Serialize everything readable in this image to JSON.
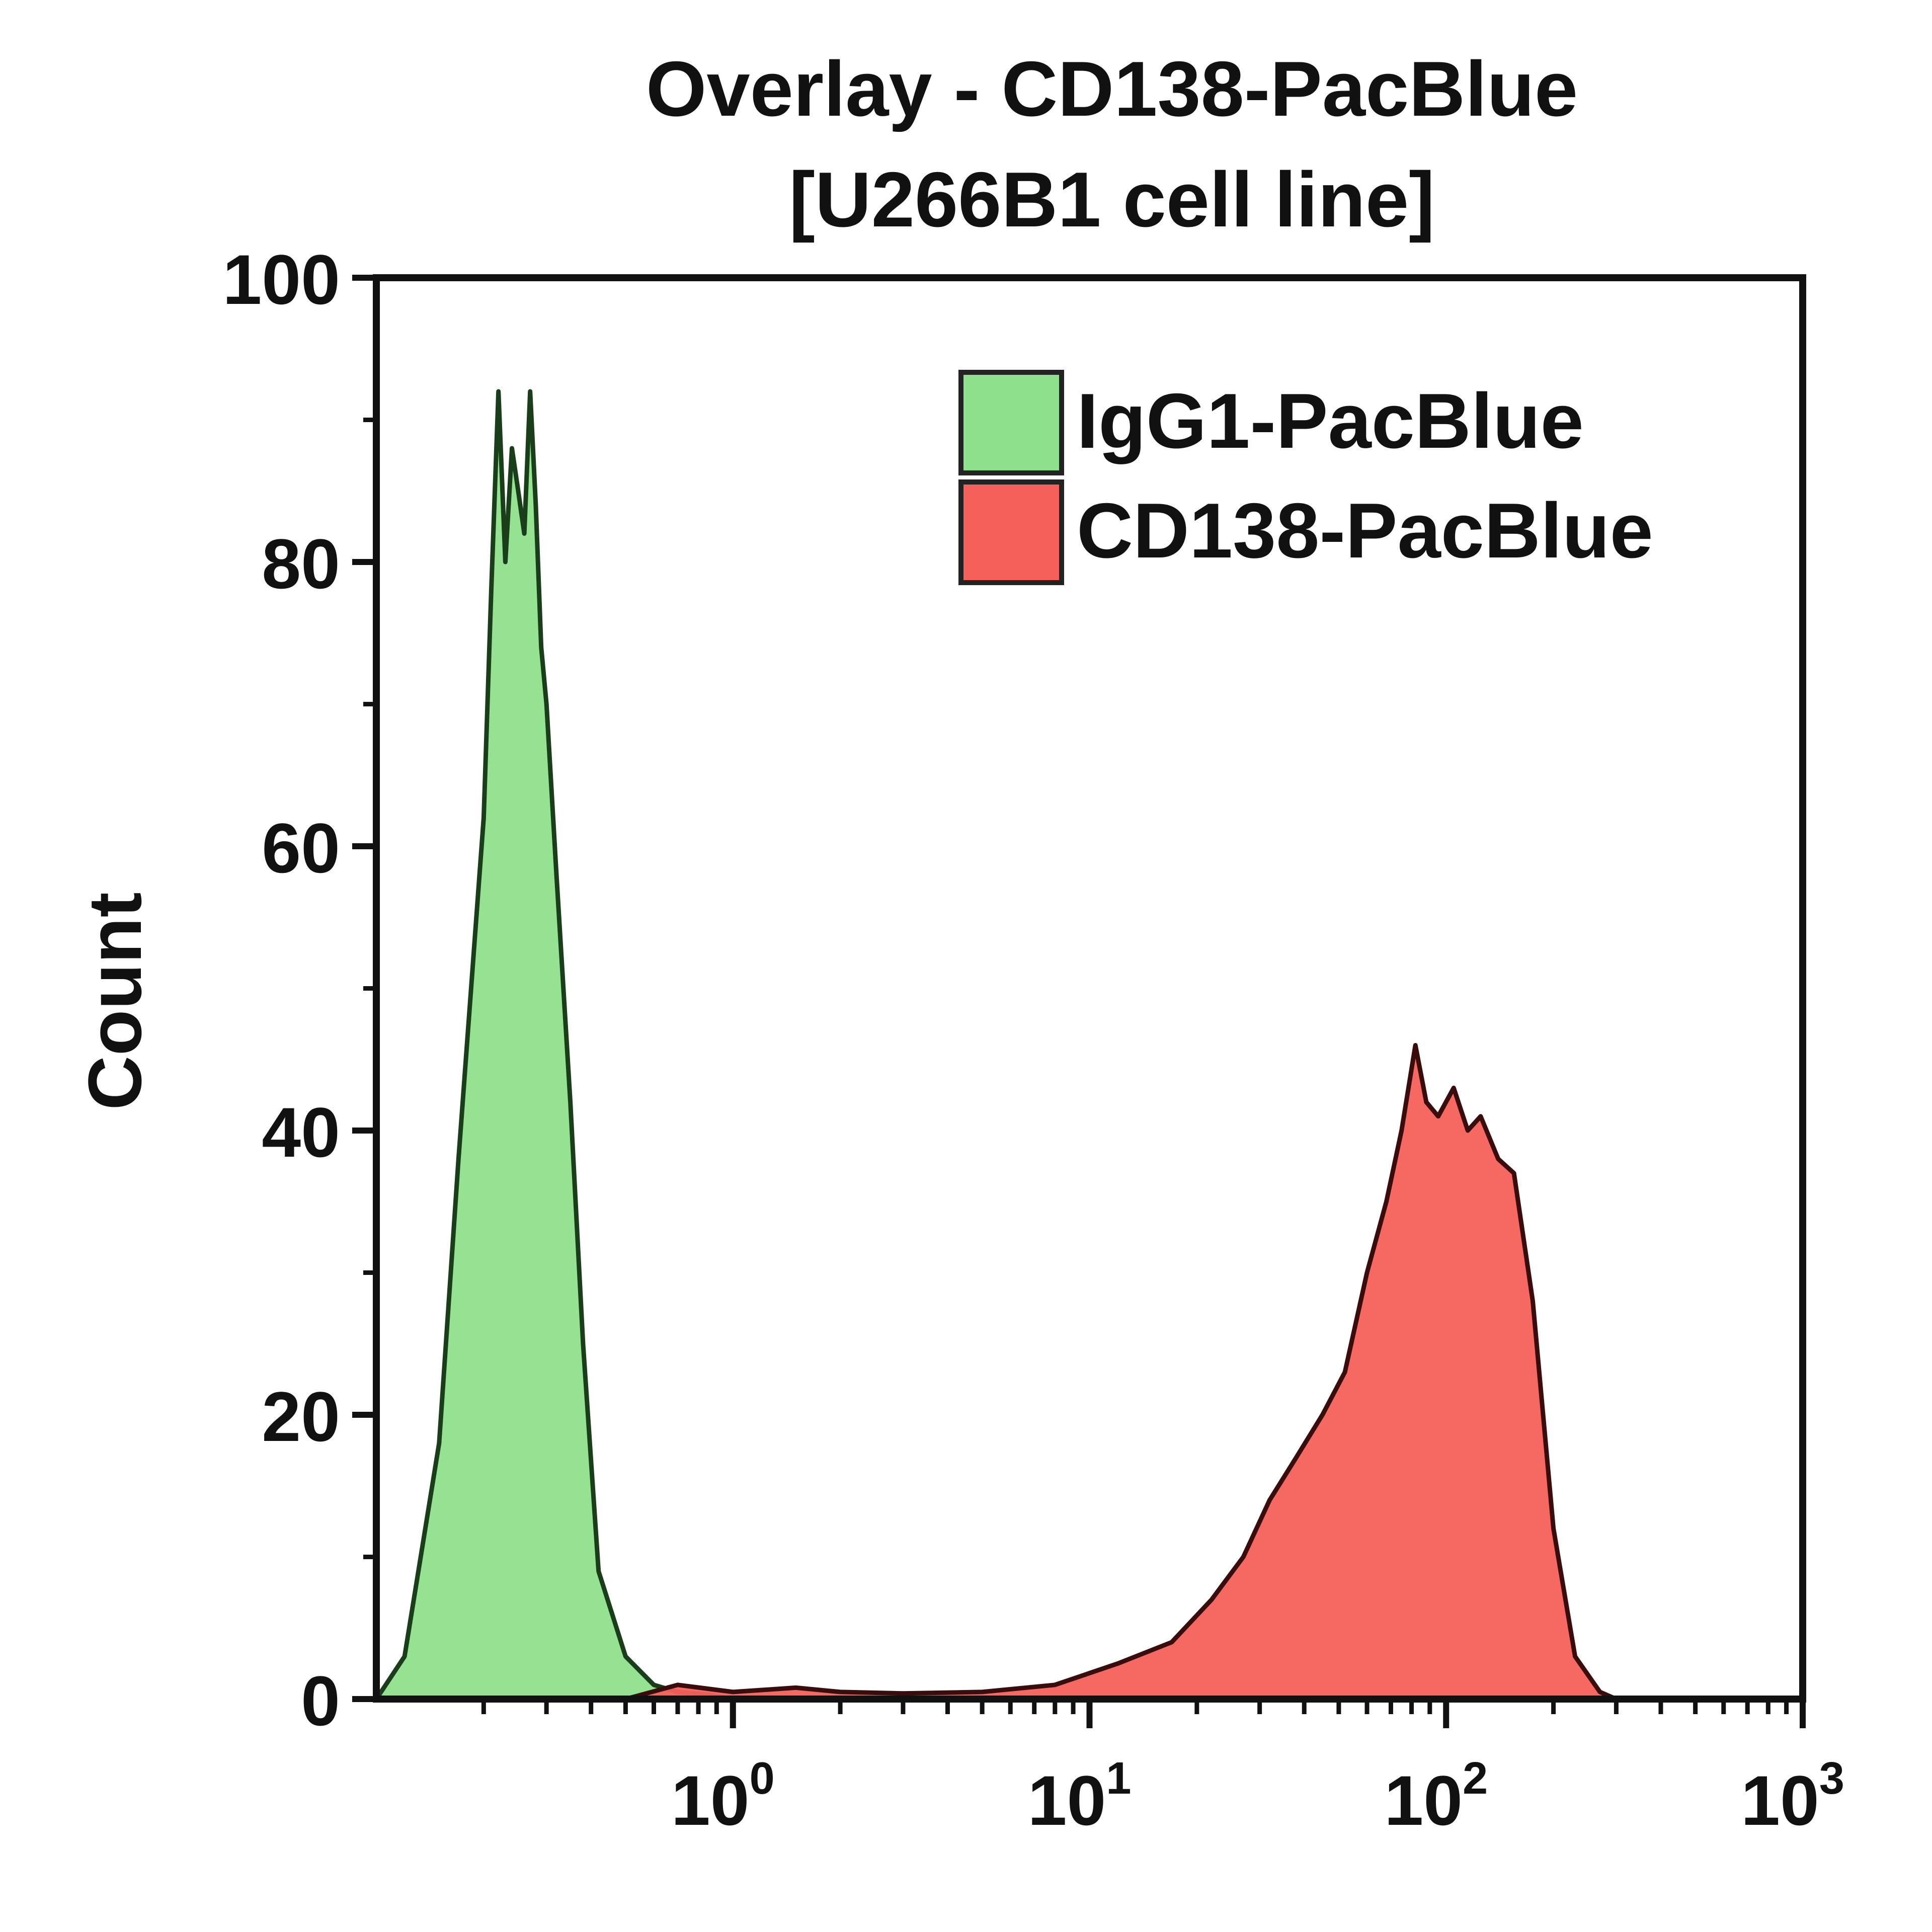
{
  "chart_data": {
    "type": "area",
    "title": "Overlay - CD138-PacBlue",
    "subtitle": "[U266B1 cell line]",
    "xlabel": "",
    "ylabel": "Count",
    "x_scale": "log",
    "xlim": [
      0.1,
      1000
    ],
    "ylim": [
      0,
      100
    ],
    "x_ticks": [
      {
        "value": 1,
        "base": "10",
        "exp": "0"
      },
      {
        "value": 10,
        "base": "10",
        "exp": "1"
      },
      {
        "value": 100,
        "base": "10",
        "exp": "2"
      },
      {
        "value": 1000,
        "base": "10",
        "exp": "3"
      }
    ],
    "y_ticks": [
      0,
      20,
      40,
      60,
      80,
      100
    ],
    "grid": false,
    "legend_position": "top-right",
    "series": [
      {
        "name": "IgG1-PacBlue",
        "color": "#8fe08c",
        "stroke": "#1a3d1a",
        "x": [
          0.1,
          0.12,
          0.15,
          0.17,
          0.2,
          0.21,
          0.22,
          0.23,
          0.24,
          0.25,
          0.26,
          0.27,
          0.28,
          0.29,
          0.3,
          0.32,
          0.35,
          0.38,
          0.42,
          0.5,
          0.6,
          0.7,
          0.85,
          1.0
        ],
        "y": [
          0,
          3,
          18,
          38,
          62,
          78,
          92,
          80,
          88,
          85,
          82,
          92,
          84,
          74,
          70,
          58,
          42,
          25,
          9,
          3,
          1,
          0.5,
          0.3,
          0
        ]
      },
      {
        "name": "CD138-PacBlue",
        "color": "#f5605a",
        "stroke": "#3a0c0c",
        "x": [
          0.5,
          0.7,
          1.0,
          1.5,
          2,
          3,
          5,
          8,
          12,
          17,
          22,
          27,
          32,
          38,
          45,
          52,
          60,
          68,
          75,
          82,
          88,
          95,
          105,
          115,
          125,
          140,
          155,
          175,
          200,
          230,
          270,
          300
        ],
        "y": [
          0,
          1,
          0.5,
          0.8,
          0.5,
          0.4,
          0.5,
          1,
          2.5,
          4,
          7,
          10,
          14,
          17,
          20,
          23,
          30,
          35,
          40,
          46,
          42,
          41,
          43,
          40,
          41,
          38,
          37,
          28,
          12,
          3,
          0.5,
          0
        ]
      }
    ]
  }
}
